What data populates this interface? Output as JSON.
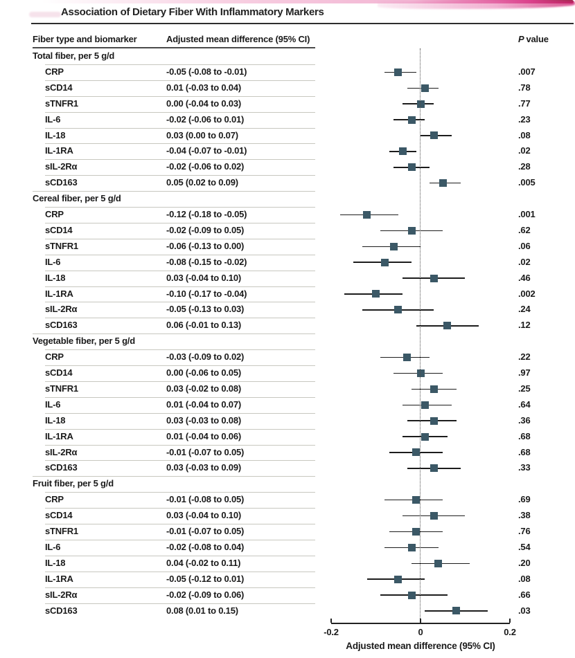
{
  "title": "Association of Dietary Fiber With Inflammatory Markers",
  "columns": {
    "biomarker": "Fiber type and biomarker",
    "estimate": "Adjusted mean difference (95% CI)",
    "p_italic": "P",
    "p_rest": "value"
  },
  "colors": {
    "marker": "#3b5866",
    "ci_line": "#1c1c1c",
    "separator": "#c7c7bf"
  },
  "chart_data": {
    "type": "forest",
    "xlabel": "Adjusted mean difference (95% CI)",
    "xlim": [
      -0.2,
      0.2
    ],
    "xticks": [
      {
        "value": -0.2,
        "label": "-0.2"
      },
      {
        "value": 0,
        "label": "0"
      },
      {
        "value": 0.2,
        "label": "0.2"
      }
    ],
    "zero_line": 0,
    "groups": [
      {
        "label": "Total fiber, per 5 g/d",
        "rows": [
          {
            "label": "CRP",
            "ci_text": "-0.05 (-0.08 to -0.01)",
            "est": -0.05,
            "lo": -0.08,
            "hi": -0.01,
            "p": ".007"
          },
          {
            "label": "sCD14",
            "ci_text": "0.01 (-0.03 to 0.04)",
            "est": 0.01,
            "lo": -0.03,
            "hi": 0.04,
            "p": ".78"
          },
          {
            "label": "sTNFR1",
            "ci_text": "0.00 (-0.04 to 0.03)",
            "est": 0.0,
            "lo": -0.04,
            "hi": 0.03,
            "p": ".77"
          },
          {
            "label": "IL-6",
            "ci_text": "-0.02 (-0.06 to 0.01)",
            "est": -0.02,
            "lo": -0.06,
            "hi": 0.01,
            "p": ".23"
          },
          {
            "label": "IL-18",
            "ci_text": "0.03 (0.00 to 0.07)",
            "est": 0.03,
            "lo": 0.0,
            "hi": 0.07,
            "p": ".08"
          },
          {
            "label": "IL-1RA",
            "ci_text": "-0.04 (-0.07 to -0.01)",
            "est": -0.04,
            "lo": -0.07,
            "hi": -0.01,
            "p": ".02"
          },
          {
            "label": "sIL-2Rα",
            "ci_text": "-0.02 (-0.06 to 0.02)",
            "est": -0.02,
            "lo": -0.06,
            "hi": 0.02,
            "p": ".28"
          },
          {
            "label": "sCD163",
            "ci_text": "0.05 (0.02 to 0.09)",
            "est": 0.05,
            "lo": 0.02,
            "hi": 0.09,
            "p": ".005"
          }
        ]
      },
      {
        "label": "Cereal fiber, per 5 g/d",
        "rows": [
          {
            "label": "CRP",
            "ci_text": "-0.12 (-0.18 to -0.05)",
            "est": -0.12,
            "lo": -0.18,
            "hi": -0.05,
            "p": ".001"
          },
          {
            "label": "sCD14",
            "ci_text": "-0.02 (-0.09 to 0.05)",
            "est": -0.02,
            "lo": -0.09,
            "hi": 0.05,
            "p": ".62"
          },
          {
            "label": "sTNFR1",
            "ci_text": "-0.06 (-0.13 to 0.00)",
            "est": -0.06,
            "lo": -0.13,
            "hi": 0.0,
            "p": ".06"
          },
          {
            "label": "IL-6",
            "ci_text": "-0.08 (-0.15 to -0.02)",
            "est": -0.08,
            "lo": -0.15,
            "hi": -0.02,
            "p": ".02"
          },
          {
            "label": "IL-18",
            "ci_text": "0.03 (-0.04 to 0.10)",
            "est": 0.03,
            "lo": -0.04,
            "hi": 0.1,
            "p": ".46"
          },
          {
            "label": "IL-1RA",
            "ci_text": "-0.10 (-0.17 to -0.04)",
            "est": -0.1,
            "lo": -0.17,
            "hi": -0.04,
            "p": ".002"
          },
          {
            "label": "sIL-2Rα",
            "ci_text": "-0.05 (-0.13 to 0.03)",
            "est": -0.05,
            "lo": -0.13,
            "hi": 0.03,
            "p": ".24"
          },
          {
            "label": "sCD163",
            "ci_text": "0.06 (-0.01 to 0.13)",
            "est": 0.06,
            "lo": -0.01,
            "hi": 0.13,
            "p": ".12"
          }
        ]
      },
      {
        "label": "Vegetable fiber, per 5 g/d",
        "rows": [
          {
            "label": "CRP",
            "ci_text": "-0.03 (-0.09 to 0.02)",
            "est": -0.03,
            "lo": -0.09,
            "hi": 0.02,
            "p": ".22"
          },
          {
            "label": "sCD14",
            "ci_text": "0.00 (-0.06 to 0.05)",
            "est": 0.0,
            "lo": -0.06,
            "hi": 0.05,
            "p": ".97"
          },
          {
            "label": "sTNFR1",
            "ci_text": "0.03 (-0.02 to 0.08)",
            "est": 0.03,
            "lo": -0.02,
            "hi": 0.08,
            "p": ".25"
          },
          {
            "label": "IL-6",
            "ci_text": "0.01 (-0.04 to 0.07)",
            "est": 0.01,
            "lo": -0.04,
            "hi": 0.07,
            "p": ".64"
          },
          {
            "label": "IL-18",
            "ci_text": "0.03 (-0.03 to 0.08)",
            "est": 0.03,
            "lo": -0.03,
            "hi": 0.08,
            "p": ".36"
          },
          {
            "label": "IL-1RA",
            "ci_text": "0.01 (-0.04 to 0.06)",
            "est": 0.01,
            "lo": -0.04,
            "hi": 0.06,
            "p": ".68"
          },
          {
            "label": "sIL-2Rα",
            "ci_text": "-0.01 (-0.07 to 0.05)",
            "est": -0.01,
            "lo": -0.07,
            "hi": 0.05,
            "p": ".68"
          },
          {
            "label": "sCD163",
            "ci_text": "0.03 (-0.03 to 0.09)",
            "est": 0.03,
            "lo": -0.03,
            "hi": 0.09,
            "p": ".33"
          }
        ]
      },
      {
        "label": "Fruit fiber, per 5 g/d",
        "rows": [
          {
            "label": "CRP",
            "ci_text": "-0.01 (-0.08 to 0.05)",
            "est": -0.01,
            "lo": -0.08,
            "hi": 0.05,
            "p": ".69"
          },
          {
            "label": "sCD14",
            "ci_text": "0.03 (-0.04 to 0.10)",
            "est": 0.03,
            "lo": -0.04,
            "hi": 0.1,
            "p": ".38"
          },
          {
            "label": "sTNFR1",
            "ci_text": "-0.01 (-0.07 to 0.05)",
            "est": -0.01,
            "lo": -0.07,
            "hi": 0.05,
            "p": ".76"
          },
          {
            "label": "IL-6",
            "ci_text": "-0.02 (-0.08 to 0.04)",
            "est": -0.02,
            "lo": -0.08,
            "hi": 0.04,
            "p": ".54"
          },
          {
            "label": "IL-18",
            "ci_text": "0.04 (-0.02 to 0.11)",
            "est": 0.04,
            "lo": -0.02,
            "hi": 0.11,
            "p": ".20"
          },
          {
            "label": "IL-1RA",
            "ci_text": "-0.05 (-0.12 to 0.01)",
            "est": -0.05,
            "lo": -0.12,
            "hi": 0.01,
            "p": ".08"
          },
          {
            "label": "sIL-2Rα",
            "ci_text": "-0.02 (-0.09 to 0.06)",
            "est": -0.02,
            "lo": -0.09,
            "hi": 0.06,
            "p": ".66"
          },
          {
            "label": "sCD163",
            "ci_text": "0.08 (0.01 to 0.15)",
            "est": 0.08,
            "lo": 0.01,
            "hi": 0.15,
            "p": ".03"
          }
        ]
      }
    ]
  }
}
